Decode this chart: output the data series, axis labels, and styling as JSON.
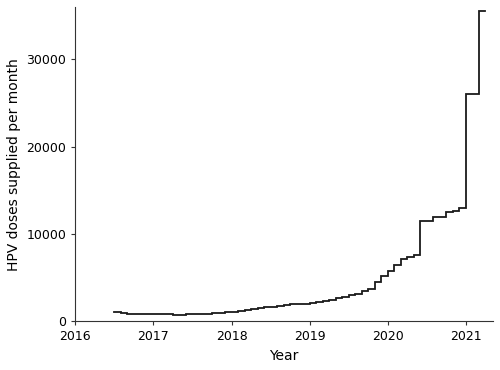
{
  "x_values": [
    2016.5,
    2016.583,
    2016.667,
    2016.75,
    2016.833,
    2016.917,
    2017.0,
    2017.083,
    2017.167,
    2017.25,
    2017.333,
    2017.417,
    2017.5,
    2017.583,
    2017.667,
    2017.75,
    2017.833,
    2017.917,
    2018.0,
    2018.083,
    2018.167,
    2018.25,
    2018.333,
    2018.417,
    2018.5,
    2018.583,
    2018.667,
    2018.75,
    2018.833,
    2018.917,
    2019.0,
    2019.083,
    2019.167,
    2019.25,
    2019.333,
    2019.417,
    2019.5,
    2019.583,
    2019.667,
    2019.75,
    2019.833,
    2019.917,
    2020.0,
    2020.083,
    2020.167,
    2020.25,
    2020.333,
    2020.417,
    2020.5,
    2020.583,
    2020.667,
    2020.75,
    2020.833,
    2020.917,
    2021.0,
    2021.083,
    2021.167,
    2021.25
  ],
  "y_values": [
    1100,
    950,
    900,
    880,
    870,
    860,
    840,
    820,
    800,
    790,
    790,
    800,
    820,
    850,
    900,
    950,
    1000,
    1050,
    1100,
    1200,
    1350,
    1450,
    1550,
    1620,
    1700,
    1780,
    1850,
    1950,
    2000,
    2050,
    2100,
    2200,
    2350,
    2500,
    2650,
    2800,
    3000,
    3200,
    3450,
    3700,
    4500,
    5200,
    5800,
    6500,
    7200,
    7400,
    7600,
    11500,
    11500,
    12000,
    12000,
    12500,
    12700,
    13000,
    26000,
    26000,
    35500,
    35500
  ],
  "line_color": "#1a1a1a",
  "line_width": 1.3,
  "xlabel": "Year",
  "ylabel": "HPV doses supplied per month",
  "xlim": [
    2016.0,
    2021.35
  ],
  "ylim": [
    0,
    36000
  ],
  "yticks": [
    0,
    10000,
    20000,
    30000
  ],
  "ytick_labels": [
    "0",
    "10000",
    "20000",
    "30000"
  ],
  "xticks": [
    2016,
    2017,
    2018,
    2019,
    2020,
    2021
  ],
  "xtick_labels": [
    "2016",
    "2017",
    "2018",
    "2019",
    "2020",
    "2021"
  ],
  "background_color": "#ffffff",
  "tick_label_fontsize": 9,
  "axis_label_fontsize": 10
}
